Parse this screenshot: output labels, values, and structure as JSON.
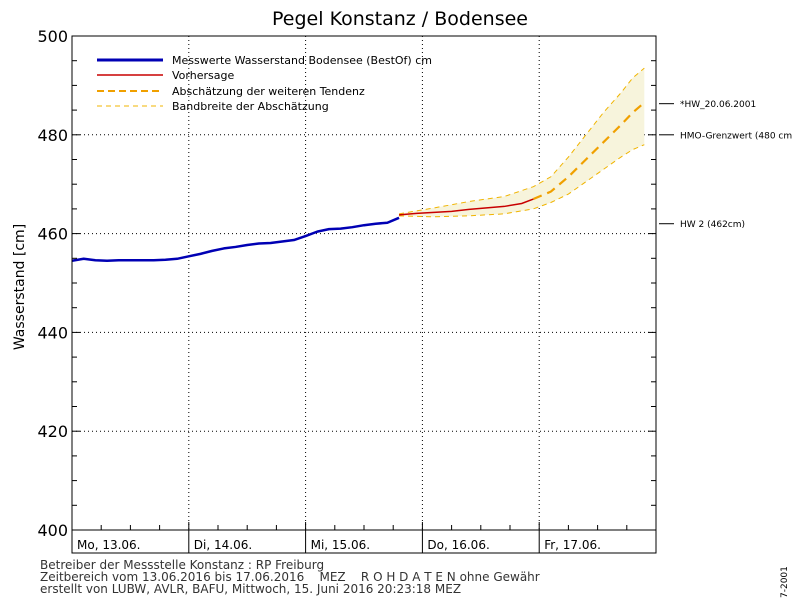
{
  "chart_data": {
    "type": "line",
    "title": "Pegel Konstanz / Bodensee",
    "ylabel": "Wasserstand [cm]",
    "xlabel": "",
    "ylim": [
      400,
      500
    ],
    "yticks": [
      400,
      420,
      440,
      460,
      480,
      500
    ],
    "grid": true,
    "legend_position": "top-left",
    "x_unit": "days since Mo, 13.06. 00:00",
    "xlim": [
      0,
      5
    ],
    "day_labels": [
      "Mo, 13.06.",
      "Di, 14.06.",
      "Mi, 15.06.",
      "Do, 16.06.",
      "Fr, 17.06."
    ],
    "series": [
      {
        "name": "Messwerte Wasserstand Bodensee  (BestOf) cm",
        "style": "solid-thick",
        "color": "#0000b4",
        "x": [
          0.0,
          0.1,
          0.2,
          0.3,
          0.4,
          0.5,
          0.6,
          0.7,
          0.8,
          0.9,
          1.0,
          1.1,
          1.2,
          1.3,
          1.4,
          1.5,
          1.6,
          1.7,
          1.8,
          1.9,
          2.0,
          2.1,
          2.2,
          2.3,
          2.4,
          2.5,
          2.6,
          2.7,
          2.8
        ],
        "y": [
          454.5,
          454.9,
          454.6,
          454.5,
          454.6,
          454.6,
          454.6,
          454.6,
          454.7,
          454.9,
          455.4,
          455.9,
          456.5,
          457.0,
          457.3,
          457.7,
          458.0,
          458.1,
          458.4,
          458.7,
          459.5,
          460.4,
          460.9,
          461.0,
          461.3,
          461.7,
          462.0,
          462.2,
          463.2
        ]
      },
      {
        "name": "Vorhersage",
        "style": "solid",
        "color": "#c80000",
        "x": [
          2.8,
          2.95,
          3.1,
          3.25,
          3.4,
          3.55,
          3.7,
          3.85,
          3.95
        ],
        "y": [
          463.8,
          464.1,
          464.3,
          464.5,
          464.9,
          465.2,
          465.5,
          466.1,
          467.0
        ]
      },
      {
        "name": "Abschätzung der weiteren Tendenz",
        "style": "dashed-thick",
        "color": "#f0a000",
        "x": [
          3.95,
          4.1,
          4.25,
          4.4,
          4.55,
          4.7,
          4.8,
          4.9
        ],
        "y": [
          467.0,
          468.5,
          471.5,
          475.0,
          478.5,
          482.0,
          484.5,
          486.5
        ]
      },
      {
        "name": "Bandbreite der Abschätzung",
        "style": "dashed-thin",
        "color": "#f0b400",
        "x": [
          2.8,
          3.1,
          3.4,
          3.7,
          3.95,
          4.1,
          4.25,
          4.4,
          4.55,
          4.7,
          4.8,
          4.9
        ],
        "upper": [
          464.0,
          465.2,
          466.5,
          467.5,
          469.5,
          471.5,
          475.5,
          480.0,
          484.5,
          488.5,
          491.5,
          493.5
        ],
        "lower": [
          463.6,
          463.4,
          463.6,
          464.0,
          465.0,
          466.3,
          468.0,
          470.5,
          473.0,
          475.5,
          477.0,
          478.0
        ]
      }
    ],
    "reference_lines": [
      {
        "value": 486.3,
        "label": "*HW_20.06.2001"
      },
      {
        "value": 480,
        "label": "HMO-Grenzwert (480 cm"
      },
      {
        "value": 462,
        "label": "HW 2 (462cm)"
      }
    ]
  },
  "footer": {
    "line1": "Betreiber der Messstelle Konstanz : RP Freiburg",
    "line2": "Zeitbereich vom 13.06.2016 bis 17.06.2016    MEZ    R O H D A T E N ohne Gewähr",
    "line3": "erstellt von LUBW, AVLR, BAFU, Mittwoch, 15. Juni 2016 20:23:18 MEZ"
  },
  "side_code": "7-2001"
}
